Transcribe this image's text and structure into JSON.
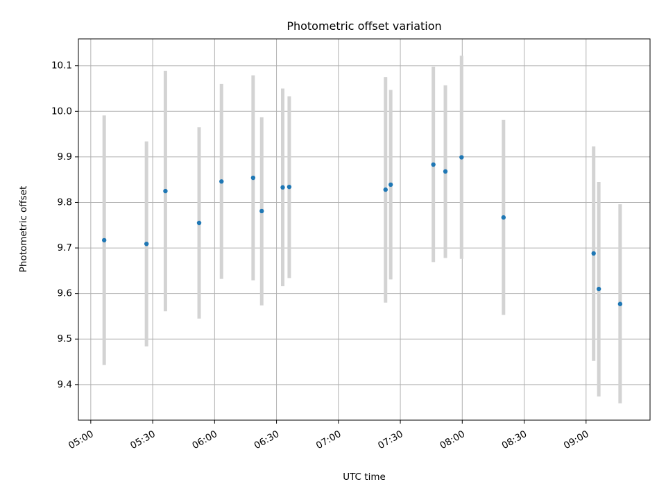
{
  "chart_data": {
    "type": "scatter",
    "title": "Photometric offset variation",
    "xlabel": "UTC time",
    "ylabel": "Photometric offset",
    "xlim": [
      "04:54",
      "09:31"
    ],
    "ylim": [
      9.322,
      10.159
    ],
    "grid": true,
    "legend": "none",
    "x_ticks": [
      "05:00",
      "05:30",
      "06:00",
      "06:30",
      "07:00",
      "07:30",
      "08:00",
      "08:30",
      "09:00"
    ],
    "y_ticks": [
      9.4,
      9.5,
      9.6,
      9.7,
      9.8,
      9.9,
      10.0,
      10.1
    ],
    "y_tick_labels": [
      "9.4",
      "9.5",
      "9.6",
      "9.7",
      "9.8",
      "9.9",
      "10.0",
      "10.1"
    ],
    "series": [
      {
        "marker_color": "#1f77b4",
        "errorbar_color": "#d3d3d3",
        "points": [
          {
            "time": "05:06:30",
            "value": 9.717,
            "low": 9.443,
            "high": 9.991
          },
          {
            "time": "05:27:00",
            "value": 9.709,
            "low": 9.484,
            "high": 9.934
          },
          {
            "time": "05:36:10",
            "value": 9.825,
            "low": 9.561,
            "high": 10.089
          },
          {
            "time": "05:52:30",
            "value": 9.755,
            "low": 9.545,
            "high": 9.965
          },
          {
            "time": "06:03:20",
            "value": 9.846,
            "low": 9.632,
            "high": 10.06
          },
          {
            "time": "06:18:40",
            "value": 9.854,
            "low": 9.629,
            "high": 10.079
          },
          {
            "time": "06:22:50",
            "value": 9.781,
            "low": 9.574,
            "high": 9.987
          },
          {
            "time": "06:33:00",
            "value": 9.833,
            "low": 9.616,
            "high": 10.05
          },
          {
            "time": "06:36:10",
            "value": 9.834,
            "low": 9.634,
            "high": 10.033
          },
          {
            "time": "07:22:50",
            "value": 9.828,
            "low": 9.58,
            "high": 10.075
          },
          {
            "time": "07:25:20",
            "value": 9.839,
            "low": 9.631,
            "high": 10.047
          },
          {
            "time": "07:46:00",
            "value": 9.883,
            "low": 9.669,
            "high": 10.098
          },
          {
            "time": "07:51:50",
            "value": 9.868,
            "low": 9.678,
            "high": 10.057
          },
          {
            "time": "07:59:40",
            "value": 9.899,
            "low": 9.676,
            "high": 10.122
          },
          {
            "time": "08:20:00",
            "value": 9.767,
            "low": 9.553,
            "high": 9.981
          },
          {
            "time": "09:03:40",
            "value": 9.688,
            "low": 9.452,
            "high": 9.923
          },
          {
            "time": "09:06:10",
            "value": 9.61,
            "low": 9.374,
            "high": 9.845
          },
          {
            "time": "09:16:30",
            "value": 9.577,
            "low": 9.359,
            "high": 9.796
          }
        ]
      }
    ]
  }
}
